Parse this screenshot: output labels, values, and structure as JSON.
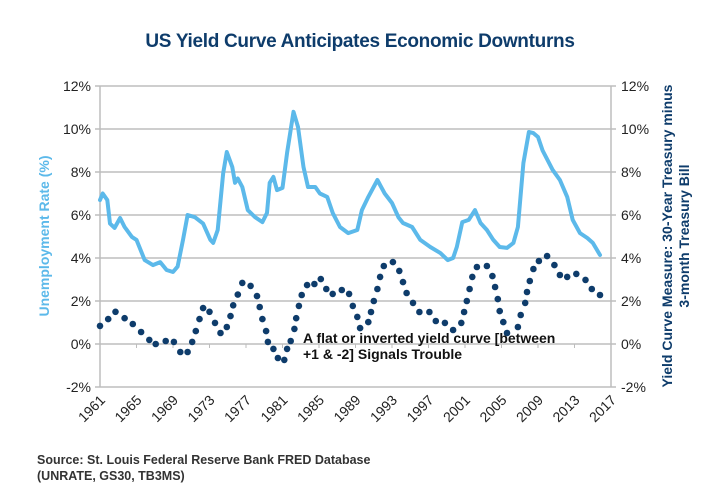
{
  "chart_data": {
    "type": "line",
    "title": "US Yield Curve Anticipates Economic Downturns",
    "xlabel": "",
    "ylabel_left": "Unemployment Rate (%)",
    "ylabel_right_line1": "Yield Curve Measure: 30-Year Treasury minus",
    "ylabel_right_line2": "3-month Treasury Bill",
    "xlim": [
      1961,
      2017
    ],
    "ylim": [
      -2,
      12
    ],
    "x_ticks": [
      "1961",
      "1965",
      "1969",
      "1973",
      "1977",
      "1981",
      "1985",
      "1989",
      "1993",
      "1997",
      "2001",
      "2005",
      "2009",
      "2013",
      "2017"
    ],
    "y_ticks_left": [
      "12%",
      "10%",
      "8%",
      "6%",
      "4%",
      "2%",
      "0%",
      "-2%"
    ],
    "y_ticks_right": [
      "12%",
      "10%",
      "8%",
      "6%",
      "4%",
      "2%",
      "0%",
      "-2%"
    ],
    "y_tick_values": [
      12,
      10,
      8,
      6,
      4,
      2,
      0,
      -2
    ],
    "grid": "horizontal",
    "annotation_line1": "A flat or inverted yield curve [between",
    "annotation_line2": "+1 & -2] Signals Trouble",
    "series": [
      {
        "name": "Unemployment Rate (%)",
        "style": "line",
        "color": "#5cb9ea",
        "x": [
          1961.0,
          1961.3,
          1961.8,
          1962.1,
          1962.6,
          1963.2,
          1963.7,
          1964.5,
          1965.0,
          1965.9,
          1966.8,
          1967.6,
          1968.3,
          1969.0,
          1969.5,
          1970.1,
          1970.6,
          1971.4,
          1972.3,
          1973.1,
          1973.4,
          1973.9,
          1974.5,
          1974.9,
          1975.5,
          1975.8,
          1976.1,
          1976.6,
          1977.2,
          1978.0,
          1978.8,
          1979.3,
          1979.6,
          1980.0,
          1980.4,
          1981.0,
          1981.5,
          1982.2,
          1982.7,
          1983.3,
          1983.8,
          1984.6,
          1985.1,
          1985.9,
          1986.5,
          1987.3,
          1988.2,
          1989.2,
          1989.7,
          1990.4,
          1991.4,
          1992.2,
          1993.0,
          1993.7,
          1994.2,
          1995.2,
          1996.1,
          1997.2,
          1998.3,
          1999.1,
          1999.7,
          2000.1,
          2000.7,
          2001.4,
          2002.1,
          2002.7,
          2003.4,
          2004.1,
          2004.8,
          2005.6,
          2006.3,
          2006.8,
          2007.4,
          2008.0,
          2008.5,
          2009.0,
          2009.5,
          2010.6,
          2011.4,
          2012.2,
          2012.8,
          2013.6,
          2014.4,
          2015.0,
          2015.8
        ],
        "values": [
          6.7,
          7.0,
          6.7,
          5.6,
          5.4,
          5.86,
          5.44,
          4.98,
          4.84,
          3.9,
          3.67,
          3.81,
          3.44,
          3.35,
          3.6,
          4.84,
          6.0,
          5.9,
          5.6,
          4.84,
          4.7,
          5.3,
          7.95,
          8.93,
          8.23,
          7.5,
          7.7,
          7.3,
          6.23,
          5.9,
          5.67,
          6.1,
          7.5,
          7.77,
          7.16,
          7.26,
          8.9,
          10.8,
          10.1,
          8.23,
          7.3,
          7.3,
          7.0,
          6.84,
          6.1,
          5.44,
          5.16,
          5.3,
          6.23,
          6.84,
          7.63,
          7.0,
          6.56,
          5.9,
          5.63,
          5.44,
          4.84,
          4.51,
          4.23,
          3.9,
          4.0,
          4.51,
          5.67,
          5.77,
          6.23,
          5.63,
          5.3,
          4.84,
          4.51,
          4.47,
          4.7,
          5.44,
          8.42,
          9.86,
          9.81,
          9.63,
          9.0,
          8.1,
          7.63,
          6.84,
          5.77,
          5.16,
          4.93,
          4.7,
          4.14
        ]
      },
      {
        "name": "Yield Curve Measure: 30-Year Treasury minus 3-month Treasury Bill",
        "style": "dots",
        "color": "#0e3c6b",
        "x": [
          1961.0,
          1961.9,
          1962.7,
          1963.7,
          1964.6,
          1965.5,
          1966.4,
          1967.1,
          1968.2,
          1969.1,
          1969.8,
          1970.6,
          1971.1,
          1971.5,
          1971.9,
          1972.3,
          1973.0,
          1973.6,
          1974.2,
          1974.9,
          1975.3,
          1975.6,
          1976.1,
          1976.6,
          1977.5,
          1978.2,
          1978.5,
          1978.8,
          1979.2,
          1979.4,
          1980.0,
          1980.5,
          1981.2,
          1981.5,
          1981.9,
          1982.3,
          1982.5,
          1982.8,
          1983.1,
          1983.7,
          1984.5,
          1985.2,
          1985.8,
          1986.5,
          1987.5,
          1988.3,
          1988.7,
          1989.2,
          1989.5,
          1990.4,
          1990.7,
          1991.0,
          1991.4,
          1991.7,
          1992.1,
          1993.1,
          1993.8,
          1994.2,
          1994.6,
          1995.3,
          1996.0,
          1997.1,
          1997.8,
          1998.8,
          1999.7,
          2000.6,
          2000.9,
          2001.2,
          2001.5,
          2001.8,
          2002.3,
          2003.4,
          2004.0,
          2004.3,
          2004.6,
          2004.8,
          2005.2,
          2005.6,
          2006.8,
          2007.1,
          2007.6,
          2007.8,
          2008.1,
          2008.5,
          2009.1,
          2010.0,
          2010.8,
          2011.4,
          2012.2,
          2013.2,
          2014.2,
          2014.9,
          2015.8
        ],
        "values": [
          0.84,
          1.16,
          1.5,
          1.2,
          0.93,
          0.56,
          0.19,
          0.0,
          0.14,
          0.1,
          -0.37,
          -0.37,
          0.1,
          0.6,
          1.16,
          1.67,
          1.5,
          0.98,
          0.51,
          0.79,
          1.3,
          1.8,
          2.3,
          2.84,
          2.7,
          2.23,
          1.72,
          1.16,
          0.6,
          0.1,
          -0.23,
          -0.65,
          -0.74,
          -0.23,
          0.14,
          0.7,
          1.2,
          1.77,
          2.28,
          2.74,
          2.79,
          3.02,
          2.56,
          2.33,
          2.51,
          2.33,
          1.77,
          1.26,
          0.74,
          1.02,
          1.49,
          2.0,
          2.56,
          3.12,
          3.63,
          3.81,
          3.4,
          2.88,
          2.37,
          1.91,
          1.49,
          1.49,
          1.07,
          0.98,
          0.65,
          0.98,
          1.49,
          2.0,
          2.56,
          3.12,
          3.58,
          3.63,
          3.16,
          2.65,
          2.09,
          1.53,
          1.02,
          0.51,
          0.79,
          1.35,
          1.91,
          2.42,
          2.93,
          3.49,
          3.86,
          4.09,
          3.67,
          3.21,
          3.12,
          3.26,
          2.98,
          2.56,
          2.28
        ]
      }
    ]
  },
  "source_line1": "Source:  St. Louis Federal Reserve Bank FRED Database",
  "source_line2": "(UNRATE, GS30, TB3MS)"
}
